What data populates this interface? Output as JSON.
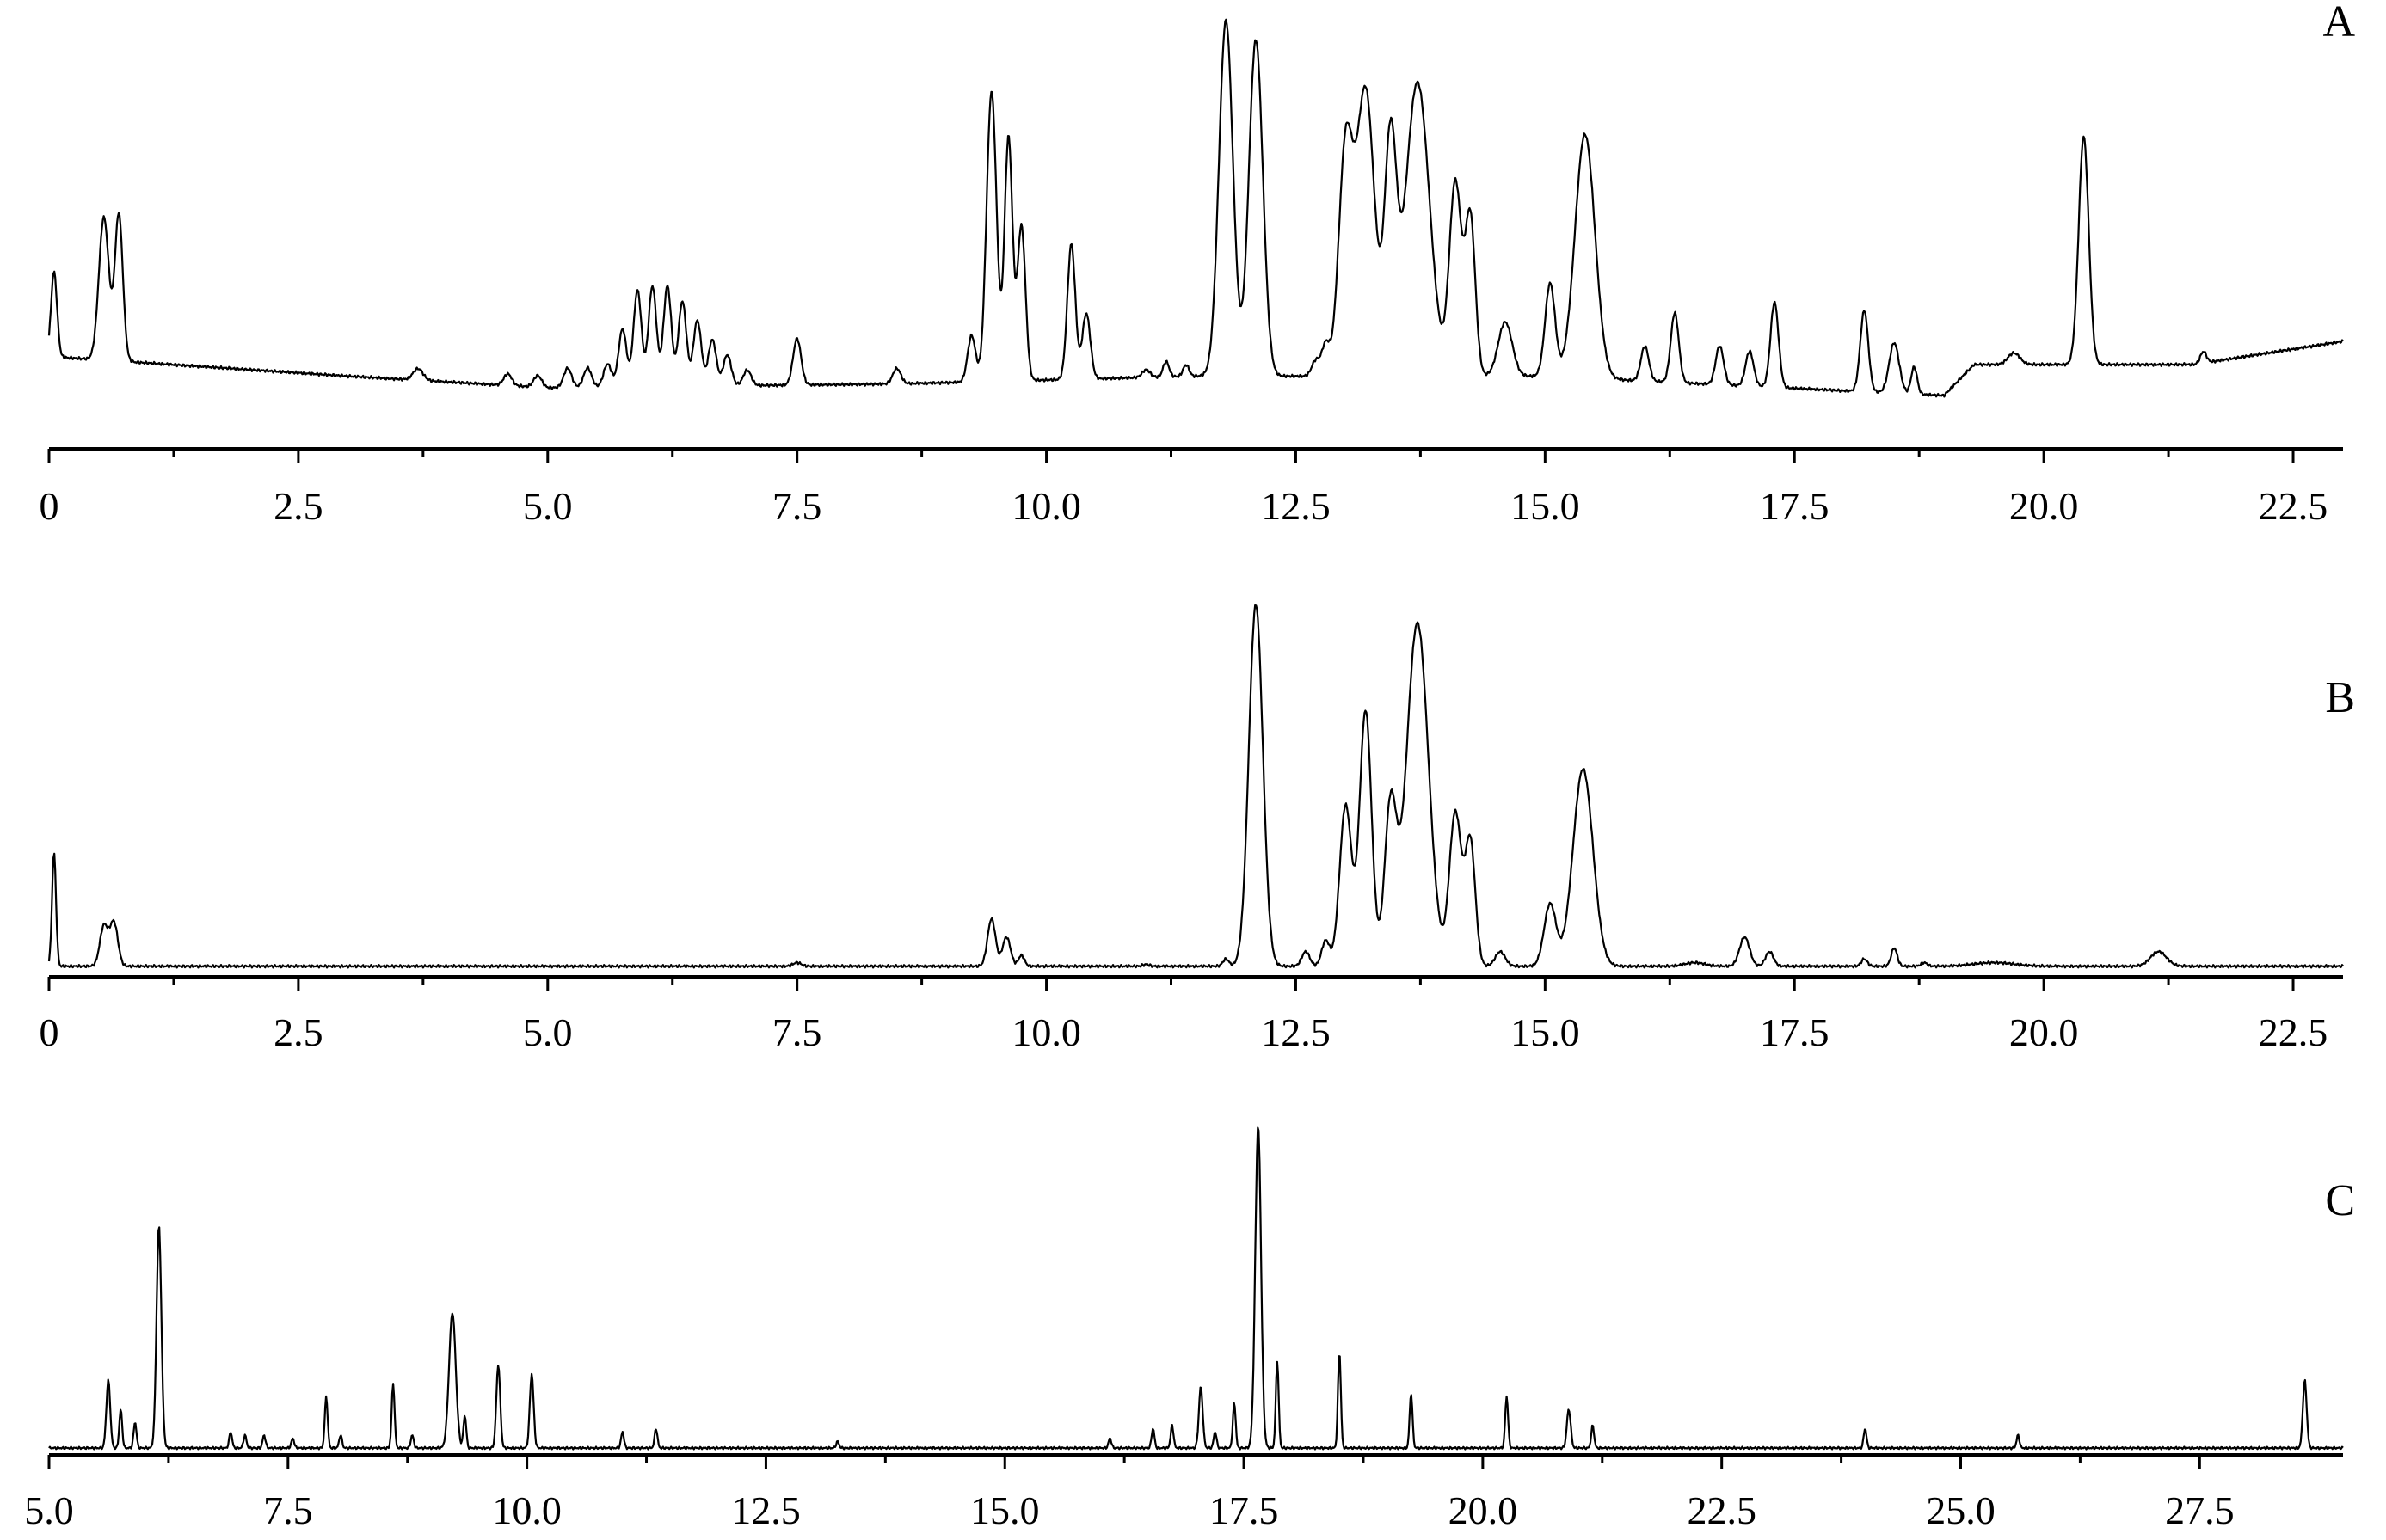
{
  "chart_data": [
    {
      "type": "line",
      "panel_label": "A",
      "xlim": [
        0,
        23.0
      ],
      "ticks": [
        "0",
        "2.5",
        "5.0",
        "7.5",
        "10.0",
        "12.5",
        "15.0",
        "17.5",
        "20.0",
        "22.5"
      ],
      "tick_values": [
        0,
        2.5,
        5.0,
        7.5,
        10.0,
        12.5,
        15.0,
        17.5,
        20.0,
        22.5
      ],
      "ylim": [
        0,
        1.0
      ],
      "baseline": [
        [
          0.05,
          0.22
        ],
        [
          3.0,
          0.17
        ],
        [
          5.0,
          0.14
        ],
        [
          8.5,
          0.15
        ],
        [
          11.5,
          0.17
        ],
        [
          15.0,
          0.17
        ],
        [
          19.0,
          0.12
        ],
        [
          19.3,
          0.2
        ],
        [
          21.5,
          0.2
        ],
        [
          23.0,
          0.26
        ]
      ],
      "peaks": [
        [
          0.05,
          0.22,
          0.03
        ],
        [
          0.55,
          0.37,
          0.05
        ],
        [
          0.7,
          0.38,
          0.04
        ],
        [
          3.7,
          0.03,
          0.05
        ],
        [
          4.6,
          0.03,
          0.04
        ],
        [
          4.9,
          0.03,
          0.04
        ],
        [
          5.2,
          0.05,
          0.04
        ],
        [
          5.4,
          0.05,
          0.04
        ],
        [
          5.6,
          0.06,
          0.04
        ],
        [
          5.75,
          0.15,
          0.04
        ],
        [
          5.9,
          0.25,
          0.04
        ],
        [
          6.05,
          0.26,
          0.04
        ],
        [
          6.2,
          0.26,
          0.04
        ],
        [
          6.35,
          0.22,
          0.04
        ],
        [
          6.5,
          0.17,
          0.04
        ],
        [
          6.65,
          0.12,
          0.04
        ],
        [
          6.8,
          0.08,
          0.04
        ],
        [
          7.0,
          0.04,
          0.04
        ],
        [
          7.5,
          0.12,
          0.04
        ],
        [
          8.5,
          0.04,
          0.04
        ],
        [
          9.25,
          0.12,
          0.04
        ],
        [
          9.45,
          0.75,
          0.05
        ],
        [
          9.62,
          0.63,
          0.04
        ],
        [
          9.75,
          0.4,
          0.04
        ],
        [
          10.25,
          0.35,
          0.04
        ],
        [
          10.4,
          0.17,
          0.04
        ],
        [
          11.0,
          0.02,
          0.04
        ],
        [
          11.2,
          0.04,
          0.03
        ],
        [
          11.4,
          0.03,
          0.03
        ],
        [
          11.8,
          0.92,
          0.07
        ],
        [
          12.1,
          0.87,
          0.07
        ],
        [
          12.7,
          0.04,
          0.04
        ],
        [
          12.8,
          0.08,
          0.04
        ],
        [
          13.0,
          0.58,
          0.07
        ],
        [
          13.2,
          0.74,
          0.09
        ],
        [
          13.45,
          0.59,
          0.06
        ],
        [
          13.72,
          0.76,
          0.12
        ],
        [
          14.1,
          0.5,
          0.06
        ],
        [
          14.25,
          0.41,
          0.05
        ],
        [
          14.6,
          0.14,
          0.07
        ],
        [
          15.05,
          0.24,
          0.05
        ],
        [
          15.4,
          0.63,
          0.1
        ],
        [
          16.0,
          0.09,
          0.04
        ],
        [
          16.3,
          0.18,
          0.04
        ],
        [
          16.75,
          0.1,
          0.04
        ],
        [
          17.05,
          0.09,
          0.04
        ],
        [
          17.3,
          0.22,
          0.04
        ],
        [
          18.2,
          0.21,
          0.04
        ],
        [
          18.5,
          0.13,
          0.05
        ],
        [
          18.7,
          0.07,
          0.03
        ],
        [
          19.7,
          0.03,
          0.06
        ],
        [
          20.4,
          0.59,
          0.05
        ],
        [
          21.6,
          0.03,
          0.03
        ]
      ]
    },
    {
      "type": "line",
      "panel_label": "B",
      "xlim": [
        0,
        23.0
      ],
      "ticks": [
        "0",
        "2.5",
        "5.0",
        "7.5",
        "10.0",
        "12.5",
        "15.0",
        "17.5",
        "20.0",
        "22.5"
      ],
      "tick_values": [
        0,
        2.5,
        5.0,
        7.5,
        10.0,
        12.5,
        15.0,
        17.5,
        20.0,
        22.5
      ],
      "ylim": [
        0,
        1.0
      ],
      "baseline": [
        [
          0.0,
          0.01
        ],
        [
          23.0,
          0.01
        ]
      ],
      "peaks": [
        [
          0.05,
          0.31,
          0.02
        ],
        [
          0.55,
          0.11,
          0.04
        ],
        [
          0.65,
          0.12,
          0.04
        ],
        [
          7.5,
          0.01,
          0.04
        ],
        [
          9.45,
          0.13,
          0.04
        ],
        [
          9.6,
          0.08,
          0.04
        ],
        [
          9.75,
          0.03,
          0.03
        ],
        [
          11.0,
          0.005,
          0.03
        ],
        [
          11.8,
          0.02,
          0.03
        ],
        [
          12.1,
          0.99,
          0.07
        ],
        [
          12.6,
          0.04,
          0.04
        ],
        [
          12.8,
          0.07,
          0.04
        ],
        [
          13.0,
          0.44,
          0.06
        ],
        [
          13.2,
          0.7,
          0.06
        ],
        [
          13.45,
          0.43,
          0.06
        ],
        [
          13.72,
          0.94,
          0.11
        ],
        [
          14.1,
          0.42,
          0.06
        ],
        [
          14.25,
          0.34,
          0.05
        ],
        [
          14.55,
          0.04,
          0.05
        ],
        [
          15.05,
          0.17,
          0.06
        ],
        [
          15.38,
          0.54,
          0.1
        ],
        [
          16.5,
          0.01,
          0.1
        ],
        [
          17.0,
          0.08,
          0.05
        ],
        [
          17.25,
          0.04,
          0.04
        ],
        [
          18.2,
          0.02,
          0.03
        ],
        [
          18.5,
          0.05,
          0.03
        ],
        [
          18.8,
          0.01,
          0.03
        ],
        [
          19.5,
          0.01,
          0.2
        ],
        [
          21.15,
          0.04,
          0.08
        ]
      ]
    },
    {
      "type": "line",
      "panel_label": "C",
      "xlim": [
        5.0,
        29.0
      ],
      "ticks": [
        "5.0",
        "7.5",
        "10.0",
        "12.5",
        "15.0",
        "17.5",
        "20.0",
        "22.5",
        "25.0",
        "27.5"
      ],
      "tick_values": [
        5.0,
        7.5,
        10.0,
        12.5,
        15.0,
        17.5,
        20.0,
        22.5,
        25.0,
        27.5
      ],
      "ylim": [
        0,
        1.0
      ],
      "baseline": [
        [
          5.0,
          0.0
        ],
        [
          29.0,
          0.0
        ]
      ],
      "peaks": [
        [
          5.62,
          0.21,
          0.02
        ],
        [
          5.75,
          0.12,
          0.015
        ],
        [
          5.9,
          0.08,
          0.015
        ],
        [
          6.15,
          0.69,
          0.025
        ],
        [
          6.9,
          0.05,
          0.015
        ],
        [
          7.05,
          0.04,
          0.015
        ],
        [
          7.25,
          0.04,
          0.015
        ],
        [
          7.55,
          0.03,
          0.015
        ],
        [
          7.9,
          0.16,
          0.015
        ],
        [
          8.05,
          0.04,
          0.015
        ],
        [
          8.6,
          0.2,
          0.015
        ],
        [
          8.8,
          0.04,
          0.015
        ],
        [
          9.22,
          0.42,
          0.035
        ],
        [
          9.35,
          0.1,
          0.015
        ],
        [
          9.7,
          0.26,
          0.02
        ],
        [
          10.05,
          0.23,
          0.02
        ],
        [
          11.0,
          0.05,
          0.015
        ],
        [
          11.35,
          0.06,
          0.015
        ],
        [
          13.25,
          0.02,
          0.015
        ],
        [
          16.1,
          0.03,
          0.015
        ],
        [
          16.55,
          0.06,
          0.015
        ],
        [
          16.75,
          0.07,
          0.015
        ],
        [
          17.05,
          0.19,
          0.02
        ],
        [
          17.2,
          0.05,
          0.015
        ],
        [
          17.4,
          0.14,
          0.015
        ],
        [
          17.65,
          1.0,
          0.03
        ],
        [
          17.85,
          0.27,
          0.015
        ],
        [
          18.5,
          0.3,
          0.015
        ],
        [
          19.25,
          0.17,
          0.015
        ],
        [
          20.25,
          0.16,
          0.015
        ],
        [
          20.9,
          0.12,
          0.02
        ],
        [
          21.15,
          0.07,
          0.015
        ],
        [
          24.0,
          0.06,
          0.015
        ],
        [
          25.6,
          0.04,
          0.015
        ],
        [
          28.6,
          0.21,
          0.02
        ]
      ]
    }
  ]
}
